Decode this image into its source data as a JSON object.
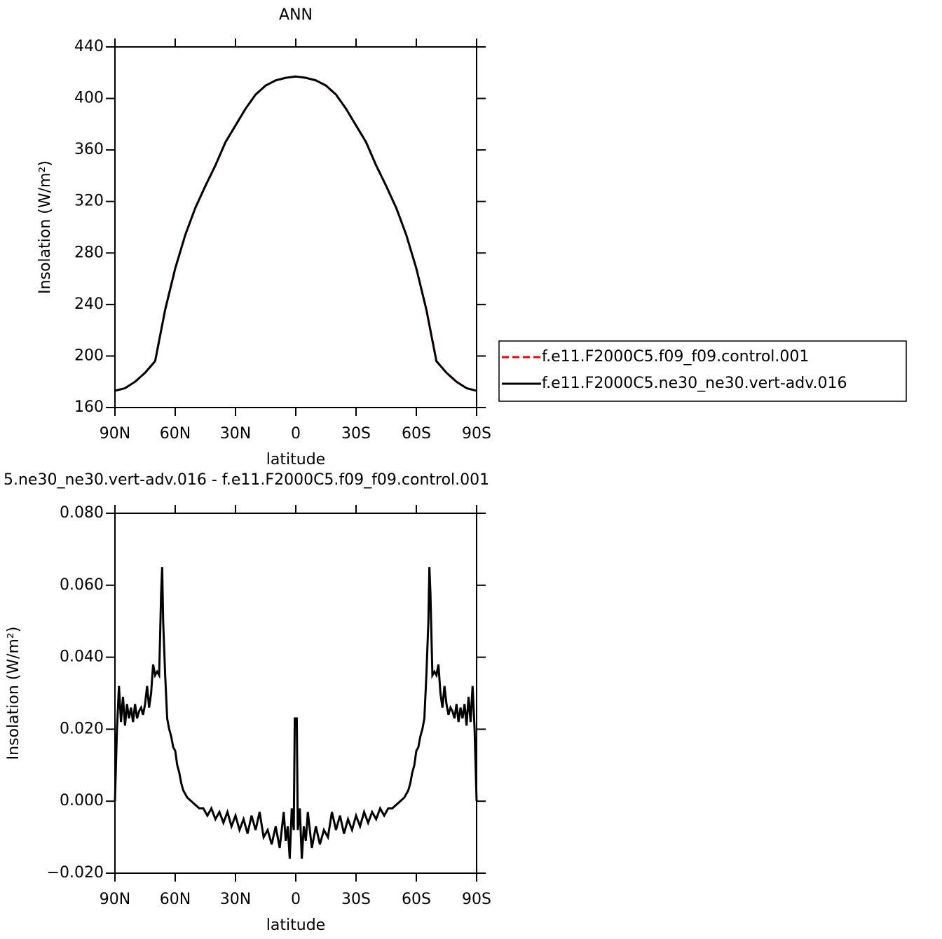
{
  "chart_data": [
    {
      "type": "line",
      "title": "ANN",
      "x_label": "latitude",
      "y_label": "Insolation (W/m²)",
      "xlim": [
        90,
        -90
      ],
      "xticks": [
        {
          "value": 90,
          "label": "90N"
        },
        {
          "value": 60,
          "label": "60N"
        },
        {
          "value": 30,
          "label": "30N"
        },
        0,
        {
          "value": -30,
          "label": "30S"
        },
        {
          "value": -60,
          "label": "60S"
        },
        {
          "value": -90,
          "label": "90S"
        }
      ],
      "ylim": [
        160,
        440
      ],
      "yticks": [
        160,
        200,
        240,
        280,
        320,
        360,
        400,
        440
      ],
      "legend": "right",
      "x": [
        90,
        85,
        80,
        75,
        70,
        65,
        60,
        55,
        50,
        45,
        40,
        35,
        30,
        25,
        20,
        15,
        10,
        5,
        0,
        -5,
        -10,
        -15,
        -20,
        -25,
        -30,
        -35,
        -40,
        -45,
        -50,
        -55,
        -60,
        -65,
        -70,
        -75,
        -80,
        -85,
        -90
      ],
      "series": [
        {
          "name": "f.e11.F2000C5.f09_f09.control.001",
          "color": "#ff0000",
          "line_style": "dashed",
          "values": [
            173,
            175,
            180,
            187,
            196,
            236,
            268,
            294,
            315,
            332,
            348,
            366,
            379,
            392,
            403,
            410,
            414,
            416,
            417,
            416,
            414,
            410,
            403,
            392,
            379,
            366,
            348,
            332,
            315,
            294,
            268,
            236,
            196,
            187,
            180,
            175,
            173
          ]
        },
        {
          "name": "f.e11.F2000C5.ne30_ne30.vert-adv.016",
          "color": "#000000",
          "line_style": "solid",
          "values": [
            173,
            175,
            180,
            187,
            196,
            236,
            268,
            294,
            315,
            332,
            348,
            366,
            379,
            392,
            403,
            410,
            414,
            416,
            417,
            416,
            414,
            410,
            403,
            392,
            379,
            366,
            348,
            332,
            315,
            294,
            268,
            236,
            196,
            187,
            180,
            175,
            173
          ]
        }
      ]
    },
    {
      "type": "line",
      "title": "5.ne30_ne30.vert-adv.016 - f.e11.F2000C5.f09_f09.control.001",
      "x_label": "latitude",
      "y_label": "Insolation (W/m²)",
      "xlim": [
        90,
        -90
      ],
      "xticks": [
        {
          "value": 90,
          "label": "90N"
        },
        {
          "value": 60,
          "label": "60N"
        },
        {
          "value": 30,
          "label": "30N"
        },
        0,
        {
          "value": -30,
          "label": "30S"
        },
        {
          "value": -60,
          "label": "60S"
        },
        {
          "value": -90,
          "label": "90S"
        }
      ],
      "ylim": [
        -0.02,
        0.08
      ],
      "yticks": [
        {
          "value": -0.02,
          "label": "−0.020"
        },
        {
          "value": 0,
          "label": "0.000"
        },
        {
          "value": 0.02,
          "label": "0.020"
        },
        {
          "value": 0.04,
          "label": "0.040"
        },
        {
          "value": 0.06,
          "label": "0.060"
        },
        {
          "value": 0.08,
          "label": "0.080"
        }
      ],
      "x": [
        90,
        89,
        88,
        87,
        86,
        85,
        84,
        83,
        82,
        81,
        80,
        79,
        78,
        77,
        76,
        75,
        74,
        73,
        72,
        71,
        70,
        69,
        68,
        67,
        66.5,
        66,
        65,
        64,
        63,
        62,
        61,
        60,
        59,
        58,
        57,
        56,
        54,
        52,
        50,
        48,
        46,
        44,
        42,
        40,
        38,
        36,
        34,
        32,
        30,
        28,
        26,
        24,
        22,
        20,
        18,
        16,
        14,
        12,
        10,
        8,
        6,
        5,
        4,
        3,
        2,
        1,
        0.5,
        -0.5,
        -1,
        -2,
        -3,
        -4,
        -5,
        -6,
        -8,
        -10,
        -12,
        -14,
        -16,
        -18,
        -20,
        -22,
        -24,
        -26,
        -28,
        -30,
        -32,
        -34,
        -36,
        -38,
        -40,
        -42,
        -44,
        -46,
        -48,
        -50,
        -52,
        -54,
        -56,
        -57,
        -58,
        -59,
        -60,
        -61,
        -62,
        -63,
        -64,
        -65,
        -66,
        -66.5,
        -67,
        -68,
        -69,
        -70,
        -71,
        -72,
        -73,
        -74,
        -75,
        -76,
        -77,
        -78,
        -79,
        -80,
        -81,
        -82,
        -83,
        -84,
        -85,
        -86,
        -87,
        -88,
        -89,
        -90
      ],
      "series": [
        {
          "color": "#000000",
          "line_style": "solid",
          "values": [
            0,
            0.02,
            0.032,
            0.022,
            0.029,
            0.021,
            0.027,
            0.023,
            0.026,
            0.022,
            0.027,
            0.023,
            0.025,
            0.026,
            0.024,
            0.027,
            0.032,
            0.026,
            0.03,
            0.038,
            0.035,
            0.036,
            0.035,
            0.058,
            0.065,
            0.05,
            0.035,
            0.023,
            0.02,
            0.018,
            0.015,
            0.014,
            0.01,
            0.008,
            0.005,
            0.003,
            0.001,
            0,
            -0.001,
            -0.002,
            -0.002,
            -0.004,
            -0.002,
            -0.005,
            -0.003,
            -0.006,
            -0.003,
            -0.007,
            -0.004,
            -0.008,
            -0.005,
            -0.009,
            -0.004,
            -0.008,
            -0.003,
            -0.01,
            -0.008,
            -0.012,
            -0.007,
            -0.013,
            -0.003,
            -0.011,
            -0.007,
            -0.016,
            -0.002,
            -0.008,
            0.023,
            0.023,
            -0.008,
            -0.002,
            -0.016,
            -0.007,
            -0.011,
            -0.003,
            -0.013,
            -0.007,
            -0.012,
            -0.008,
            -0.01,
            -0.003,
            -0.008,
            -0.004,
            -0.009,
            -0.005,
            -0.008,
            -0.004,
            -0.007,
            -0.003,
            -0.006,
            -0.003,
            -0.005,
            -0.002,
            -0.004,
            -0.002,
            -0.002,
            -0.001,
            0,
            0.001,
            0.003,
            0.005,
            0.008,
            0.01,
            0.014,
            0.015,
            0.018,
            0.02,
            0.023,
            0.035,
            0.05,
            0.065,
            0.058,
            0.035,
            0.036,
            0.035,
            0.038,
            0.03,
            0.026,
            0.032,
            0.027,
            0.024,
            0.026,
            0.025,
            0.023,
            0.027,
            0.022,
            0.026,
            0.023,
            0.027,
            0.021,
            0.029,
            0.022,
            0.032,
            0.02,
            0
          ]
        }
      ]
    }
  ]
}
